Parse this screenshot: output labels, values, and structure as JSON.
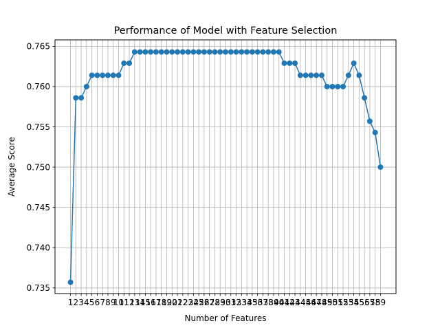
{
  "chart_data": {
    "type": "line",
    "title": "Performance of Model with Feature Selection",
    "xlabel": "Number of Features",
    "ylabel": "Average Score",
    "x": [
      1,
      2,
      3,
      4,
      5,
      6,
      7,
      8,
      9,
      10,
      11,
      12,
      13,
      14,
      15,
      16,
      17,
      18,
      19,
      20,
      21,
      22,
      23,
      24,
      25,
      26,
      27,
      28,
      29,
      30,
      31,
      32,
      33,
      34,
      35,
      36,
      37,
      38,
      39,
      40,
      41,
      42,
      43,
      44,
      45,
      46,
      47,
      48,
      49,
      50,
      51,
      52,
      53,
      54,
      55,
      56,
      57,
      58,
      59
    ],
    "series": [
      {
        "values": [
          0.7357,
          0.7586,
          0.7586,
          0.76,
          0.7614,
          0.7614,
          0.7614,
          0.7614,
          0.7614,
          0.7614,
          0.7629,
          0.7629,
          0.7643,
          0.7643,
          0.7643,
          0.7643,
          0.7643,
          0.7643,
          0.7643,
          0.7643,
          0.7643,
          0.7643,
          0.7643,
          0.7643,
          0.7643,
          0.7643,
          0.7643,
          0.7643,
          0.7643,
          0.7643,
          0.7643,
          0.7643,
          0.7643,
          0.7643,
          0.7643,
          0.7643,
          0.7643,
          0.7643,
          0.7643,
          0.7643,
          0.7629,
          0.7629,
          0.7629,
          0.7614,
          0.7614,
          0.7614,
          0.7614,
          0.7614,
          0.76,
          0.76,
          0.76,
          0.76,
          0.7614,
          0.7629,
          0.7614,
          0.7586,
          0.7557,
          0.7543,
          0.75
        ],
        "color": "#1f77b4"
      }
    ],
    "yticks": [
      0.735,
      0.74,
      0.745,
      0.75,
      0.755,
      0.76,
      0.765
    ],
    "ytick_labels": [
      "0.735",
      "0.740",
      "0.745",
      "0.750",
      "0.755",
      "0.760",
      "0.765"
    ],
    "xticks": [
      1,
      2,
      3,
      4,
      5,
      6,
      7,
      8,
      9,
      10,
      11,
      12,
      13,
      14,
      15,
      16,
      17,
      18,
      19,
      20,
      21,
      22,
      23,
      24,
      25,
      26,
      27,
      28,
      29,
      30,
      31,
      32,
      33,
      34,
      35,
      36,
      37,
      38,
      39,
      40,
      41,
      42,
      43,
      44,
      45,
      46,
      47,
      48,
      49,
      50,
      51,
      52,
      53,
      54,
      55,
      56,
      57,
      58,
      59
    ],
    "xlim": [
      -1.9,
      61.9
    ],
    "ylim": [
      0.7343,
      0.7658
    ],
    "grid": true
  }
}
